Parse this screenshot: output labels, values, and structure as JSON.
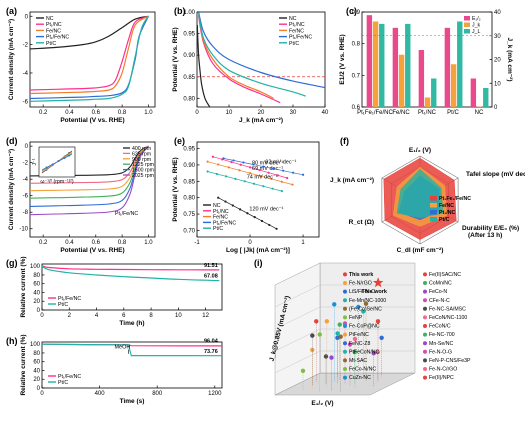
{
  "colors": {
    "NC": "#222222",
    "Pt1": "#ff2f8e",
    "FeNC": "#f57d2a",
    "Pt1FeNC": "#2f6bd8",
    "PtC": "#22b3a5",
    "dash_red": "#e8403a",
    "radar_fill": "#e8403a"
  },
  "chart_data": [
    {
      "panel": "(a)",
      "type": "line",
      "xlabel": "Potential (V vs. RHE)",
      "ylabel": "Current density (mA cm⁻²)",
      "xlim": [
        0.1,
        1.05
      ],
      "ylim": [
        -6.4,
        0.3
      ],
      "xticks": [
        0.2,
        0.4,
        0.6,
        0.8,
        1.0
      ],
      "yticks": [
        0,
        -2,
        -4,
        -6
      ],
      "legend": [
        "NC",
        "Pt1/NC",
        "Fe/NC",
        "Pt1/Fe/NC",
        "Pt/C"
      ],
      "series": [
        {
          "name": "NC",
          "key": "NC",
          "x": [
            0.1,
            0.3,
            0.5,
            0.6,
            0.7,
            0.8,
            0.9,
            1.0
          ],
          "y": [
            -2.3,
            -2.2,
            -2.0,
            -1.8,
            -1.4,
            -0.8,
            -0.2,
            0
          ]
        },
        {
          "name": "Pt1/NC",
          "key": "Pt1",
          "x": [
            0.1,
            0.3,
            0.5,
            0.6,
            0.7,
            0.75,
            0.8,
            0.85,
            0.9,
            1.0
          ],
          "y": [
            -5.2,
            -5.15,
            -5.1,
            -5.05,
            -4.9,
            -4.5,
            -3.2,
            -1.6,
            -0.4,
            0
          ]
        },
        {
          "name": "Fe/NC",
          "key": "FeNC",
          "x": [
            0.1,
            0.3,
            0.5,
            0.6,
            0.7,
            0.75,
            0.8,
            0.85,
            0.9,
            1.0
          ],
          "y": [
            -5.45,
            -5.4,
            -5.35,
            -5.3,
            -5.2,
            -4.9,
            -4.0,
            -2.2,
            -0.6,
            0
          ]
        },
        {
          "name": "Pt1/Fe/NC",
          "key": "Pt1FeNC",
          "x": [
            0.1,
            0.3,
            0.5,
            0.6,
            0.7,
            0.8,
            0.85,
            0.9,
            0.93,
            1.0
          ],
          "y": [
            -5.8,
            -5.75,
            -5.7,
            -5.65,
            -5.6,
            -5.4,
            -4.8,
            -3.0,
            -1.4,
            0
          ]
        },
        {
          "name": "Pt/C",
          "key": "PtC",
          "x": [
            0.1,
            0.3,
            0.5,
            0.6,
            0.7,
            0.8,
            0.85,
            0.9,
            0.95,
            1.0
          ],
          "y": [
            -6.0,
            -5.95,
            -5.9,
            -5.85,
            -5.8,
            -5.5,
            -4.9,
            -2.8,
            -0.8,
            0
          ]
        }
      ]
    },
    {
      "panel": "(b)",
      "type": "line",
      "xlabel": "J_k (mA cm⁻²)",
      "ylabel": "Potential (V vs. RHE)",
      "xlim": [
        0,
        40
      ],
      "ylim": [
        0.78,
        1.0
      ],
      "xticks": [
        0,
        10,
        20,
        30,
        40
      ],
      "yticks": [
        0.8,
        0.85,
        0.9,
        0.95,
        1.0
      ],
      "legend": [
        "NC",
        "Pt1/NC",
        "Fe/NC",
        "Pt1/Fe/NC",
        "Pt/C"
      ],
      "series": [
        {
          "name": "NC",
          "key": "NC",
          "x": [
            0.1,
            0.5,
            1,
            1.5,
            2.5,
            4
          ],
          "y": [
            0.97,
            0.9,
            0.86,
            0.83,
            0.8,
            0.78
          ]
        },
        {
          "name": "Pt1/NC",
          "key": "Pt1",
          "x": [
            0.5,
            2,
            5,
            10,
            15,
            20,
            26
          ],
          "y": [
            0.99,
            0.93,
            0.88,
            0.845,
            0.825,
            0.81,
            0.79
          ]
        },
        {
          "name": "Fe/NC",
          "key": "FeNC",
          "x": [
            0.5,
            2,
            5,
            10,
            15,
            20,
            24
          ],
          "y": [
            0.995,
            0.935,
            0.89,
            0.85,
            0.83,
            0.815,
            0.8
          ]
        },
        {
          "name": "Pt1/Fe/NC",
          "key": "Pt1FeNC",
          "x": [
            0.5,
            2,
            5,
            10,
            20,
            30,
            40
          ],
          "y": [
            1.0,
            0.955,
            0.92,
            0.89,
            0.86,
            0.84,
            0.825
          ]
        },
        {
          "name": "Pt/C",
          "key": "PtC",
          "x": [
            0.5,
            2,
            5,
            10,
            20,
            30,
            34
          ],
          "y": [
            0.995,
            0.94,
            0.9,
            0.865,
            0.835,
            0.815,
            0.805
          ]
        }
      ],
      "hline": 0.85
    },
    {
      "panel": "(c)",
      "type": "bar",
      "categories": [
        "Pt1Fe1/Fe/NC",
        "Fe/NC",
        "Pt1/NC",
        "Pt/C",
        "NC"
      ],
      "left_ylabel": "E1/2 (V vs. RHE)",
      "right_ylabel": "J_k (mA cm⁻²)",
      "right_ylabel2": "J_L (mA cm⁻²)",
      "left_ylim": [
        0.6,
        0.9
      ],
      "left_yticks": [
        0.6,
        0.7,
        0.8,
        0.9
      ],
      "right_ylim": [
        0,
        40
      ],
      "right_yticks": [
        0,
        10,
        20,
        30,
        40
      ],
      "legend": [
        "E1/2",
        "Jk",
        "JL"
      ],
      "series": [
        {
          "name": "E1/2",
          "values": [
            0.89,
            0.85,
            0.78,
            0.85,
            0.69
          ]
        },
        {
          "name": "Jk",
          "values": [
            36,
            22,
            4,
            18,
            0.2
          ]
        },
        {
          "name": "JL",
          "values": [
            35,
            35,
            12,
            36,
            8
          ]
        }
      ]
    },
    {
      "panel": "(d)",
      "type": "line",
      "xlabel": "Potential (V vs. RHE)",
      "ylabel": "Current density (mA cm⁻²)",
      "xlim": [
        0.1,
        1.05
      ],
      "ylim": [
        -11,
        0.5
      ],
      "xticks": [
        0.2,
        0.4,
        0.6,
        0.8,
        1.0
      ],
      "yticks": [
        0,
        -2,
        -4,
        -6,
        -8,
        -10
      ],
      "legend": [
        "400 rpm",
        "625 rpm",
        "900 rpm",
        "1225 rpm",
        "1600 rpm",
        "2025 rpm"
      ],
      "label": "Pt1/Fe/NC",
      "inset_xlabel": "ω⁻¹/² (rpm⁻¹/²)",
      "inset_ylabel": "J⁻¹",
      "series": [
        {
          "name": "400 rpm",
          "plateau": -3.6
        },
        {
          "name": "625 rpm",
          "plateau": -4.5
        },
        {
          "name": "900 rpm",
          "plateau": -5.4
        },
        {
          "name": "1225 rpm",
          "plateau": -6.3
        },
        {
          "name": "1600 rpm",
          "plateau": -7.3
        },
        {
          "name": "2025 rpm",
          "plateau": -8.3
        }
      ]
    },
    {
      "panel": "(e)",
      "type": "line",
      "xlabel": "Log [ |Jk| (mA cm⁻²)]",
      "ylabel": "Potential (V vs. RHE)",
      "xlim": [
        -1,
        1.3
      ],
      "ylim": [
        0.68,
        0.97
      ],
      "xticks": [
        -1,
        0,
        1
      ],
      "yticks": [
        0.7,
        0.75,
        0.8,
        0.85,
        0.9,
        0.95
      ],
      "legend": [
        "NC",
        "Pt1/NC",
        "Fe/NC",
        "Pt1/Fe/NC",
        "Pt/C"
      ],
      "series": [
        {
          "name": "NC",
          "key": "NC",
          "x": [
            -0.6,
            0.5
          ],
          "y": [
            0.8,
            0.705
          ],
          "label": "120 mV dec⁻¹"
        },
        {
          "name": "Pt1/NC",
          "key": "Pt1",
          "x": [
            -0.7,
            0.7
          ],
          "y": [
            0.925,
            0.86
          ],
          "label": "80 mV dec⁻¹"
        },
        {
          "name": "Fe/NC",
          "key": "FeNC",
          "x": [
            -0.8,
            0.8
          ],
          "y": [
            0.91,
            0.84
          ],
          "label": "69 mV dec⁻¹"
        },
        {
          "name": "Pt1/Fe/NC",
          "key": "Pt1FeNC",
          "x": [
            -0.5,
            1.0
          ],
          "y": [
            0.92,
            0.87
          ],
          "label": "62 mV dec⁻¹"
        },
        {
          "name": "Pt/C",
          "key": "PtC",
          "x": [
            -0.8,
            0.6
          ],
          "y": [
            0.88,
            0.82
          ],
          "label": "74 mV dec⁻¹"
        }
      ]
    },
    {
      "panel": "(f)",
      "type": "radar",
      "axes": [
        "E1/2 (V)",
        "Tafel slope (mV dec⁻¹)",
        "Durability E/E0 (%) (After 13 h)",
        "Cdl (mF cm⁻²)",
        "Rct (Ω)",
        "Jk (mA cm⁻²)"
      ],
      "legend": [
        "Pt1Fe1/Fe/NC",
        "Fe/NC",
        "Pt1/NC",
        "Pt/C"
      ],
      "series": [
        {
          "name": "Pt1Fe1/Fe/NC",
          "values": [
            0.95,
            0.9,
            0.95,
            0.9,
            0.92,
            0.95
          ]
        },
        {
          "name": "Fe/NC",
          "values": [
            0.75,
            0.65,
            0.7,
            0.6,
            0.7,
            0.6
          ]
        },
        {
          "name": "Pt1/NC",
          "values": [
            0.55,
            0.5,
            0.5,
            0.45,
            0.55,
            0.4
          ]
        },
        {
          "name": "Pt/C",
          "values": [
            0.7,
            0.55,
            0.6,
            0.4,
            0.6,
            0.5
          ]
        }
      ]
    },
    {
      "panel": "(g)",
      "type": "line",
      "xlabel": "Time (h)",
      "ylabel": "Relative current (%)",
      "xlim": [
        0,
        13.2
      ],
      "ylim": [
        0,
        105
      ],
      "xticks": [
        0,
        2,
        4,
        6,
        8,
        10,
        12
      ],
      "yticks": [
        0,
        20,
        40,
        60,
        80,
        100
      ],
      "legend": [
        "Pt1/Fe/NC",
        "Pt/C"
      ],
      "annotations": [
        "91.51",
        "67.08"
      ],
      "series": [
        {
          "name": "Pt1/Fe/NC",
          "key": "Pt1",
          "x": [
            0,
            0.5,
            2,
            4,
            6,
            8,
            10,
            12,
            13
          ],
          "y": [
            100,
            97,
            94,
            93,
            92.5,
            92,
            91.8,
            91.6,
            91.5
          ]
        },
        {
          "name": "Pt/C",
          "key": "PtC",
          "x": [
            0,
            0.5,
            2,
            4,
            6,
            8,
            10,
            12,
            13
          ],
          "y": [
            100,
            92,
            85,
            80,
            76,
            73,
            70,
            68,
            67
          ]
        }
      ]
    },
    {
      "panel": "(h)",
      "type": "line",
      "xlabel": "Time (s)",
      "ylabel": "Relative current (%)",
      "xlim": [
        0,
        1250
      ],
      "ylim": [
        0,
        105
      ],
      "xticks": [
        0,
        400,
        800,
        1200
      ],
      "yticks": [
        0,
        20,
        40,
        60,
        80,
        100
      ],
      "legend": [
        "Pt1/Fe/NC",
        "Pt/C"
      ],
      "annotations": [
        "96.04",
        "73.76"
      ],
      "marker_text": "MeOH",
      "series": [
        {
          "name": "Pt1/Fe/NC",
          "key": "Pt1",
          "x": [
            0,
            300,
            600,
            620,
            800,
            1000,
            1200,
            1250
          ],
          "y": [
            100,
            99,
            98.5,
            96.5,
            96.3,
            96.1,
            96.05,
            96
          ]
        },
        {
          "name": "Pt/C",
          "key": "PtC",
          "x": [
            0,
            300,
            600,
            620,
            800,
            1000,
            1200,
            1250
          ],
          "y": [
            100,
            99,
            98.5,
            74,
            74,
            73.9,
            73.8,
            73.8
          ]
        }
      ]
    },
    {
      "panel": "(i)",
      "type": "scatter",
      "xlabel": "E1/2 (V)",
      "ylabel": "Jk@0.85V (mA cm⁻²)",
      "zlabel": "",
      "highlight": "This work",
      "legend": [
        "This work",
        "Fe(II)SAC/NC",
        "Fe-N/rGO",
        "CoMn/NC",
        "LiS/Fe-N-C",
        "FeCo-N",
        "Fe-Mn/NC-1000",
        "CFe-N-C",
        "(Fe,Co)Se/NC",
        "Fe-NC-SA/MSC",
        "FeNP",
        "FeCoN/NC-1100",
        "Fe-CoP@NC",
        "FeCoN/C",
        "PtFe/NC",
        "Fe-NC-700",
        "FeNC-Z8",
        "Mn-Se/NC",
        "PtFeCoN/NC",
        "Fe-N-O-G",
        "Mt-SAC",
        "FeN-P-CNS/Fe3P",
        "FeCo-N/NC",
        "Fe-N-C/rGO",
        "CuZn-NC",
        "Fe(II)/NPC"
      ]
    }
  ],
  "labels": {
    "legend_names": [
      "NC",
      "Pt₁/NC",
      "Fe/NC",
      "Pt₁/Fe/NC",
      "Pt/C"
    ],
    "c_legend": [
      "E₁/₂",
      "J_k",
      "J_L"
    ],
    "c_cats": [
      "Pt₁Fe₁/Fe/NC",
      "Fe/NC",
      "Pt₁/NC",
      "Pt/C",
      "NC"
    ],
    "d_legend": [
      "400 rpm",
      "625 rpm",
      "900 rpm",
      "1225 rpm",
      "1600 rpm",
      "2025 rpm"
    ],
    "d_label": "Pt₁/Fe/NC",
    "e_slopes": [
      "120 mV dec⁻¹",
      "80 mV dec⁻¹",
      "69 mV dec⁻¹",
      "62 mV dec⁻¹",
      "74 mV dec⁻¹"
    ],
    "f_axes": [
      "E₁/₂ (V)",
      "Tafel slope (mV dec⁻¹)",
      "Durability E/E₀ (%)",
      "(After 13 h)",
      "C_dl (mF cm⁻²)",
      "R_ct (Ω)",
      "J_k (mA cm⁻²)"
    ],
    "f_legend": [
      "Pt₁Fe₁/Fe/NC",
      "Fe/NC",
      "Pt₁/NC",
      "Pt/C"
    ],
    "g_legend": [
      "Pt₁/Fe/NC",
      "Pt/C"
    ],
    "i_this": "This work",
    "i_ylabel": "J_k@0.85V (mA cm⁻²)",
    "i_xlabel": "E₁/₂ (V)"
  }
}
